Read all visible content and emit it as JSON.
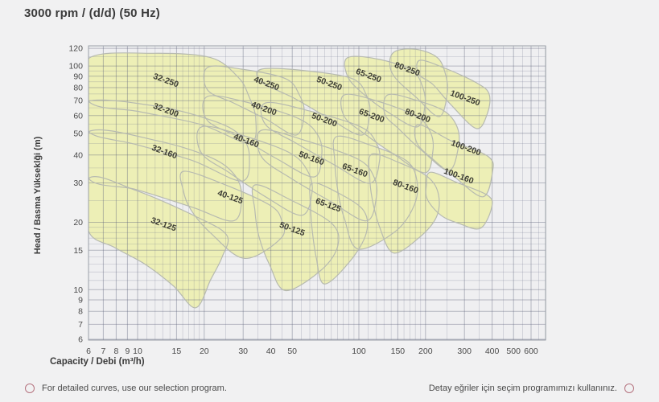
{
  "title": "3000 rpm / (d/d) (50 Hz)",
  "footer": {
    "left_note": "For detailed curves, use our selection program.",
    "right_note": "Detay eğriler için seçim programımızı kullanınız."
  },
  "colors": {
    "page_bg": "#f1f1f2",
    "plot_bg": "#efeff1",
    "plot_border": "#9aa0a8",
    "grid_minor": "rgba(110,115,140,0.28)",
    "grid_major": "rgba(90,95,120,0.40)",
    "region_fill": "#edefb6",
    "region_stroke": "#b7bab0",
    "region_label": "#3c3c34",
    "tick_text": "#4a4a4a",
    "footer_accent": "#b5737f"
  },
  "chart_data": {
    "type": "area",
    "title": "3000 rpm / (d/d) (50 Hz)",
    "xlabel": "Capacity / Debi (m³/h)",
    "ylabel": "Head / Basma Yükseklği (m)",
    "x_axis": {
      "scale": "log",
      "range": [
        6,
        700
      ],
      "tick_labels": [
        6,
        7,
        8,
        9,
        10,
        15,
        20,
        30,
        40,
        50,
        100,
        150,
        200,
        300,
        400,
        500,
        600
      ],
      "gridlines": [
        6,
        7,
        8,
        9,
        10,
        11,
        12,
        13,
        14,
        15,
        16,
        17,
        18,
        19,
        20,
        25,
        30,
        35,
        40,
        45,
        50,
        55,
        60,
        65,
        70,
        75,
        80,
        85,
        90,
        95,
        100,
        110,
        120,
        130,
        140,
        150,
        160,
        170,
        180,
        190,
        200,
        250,
        300,
        350,
        400,
        450,
        500,
        550,
        600,
        650,
        700
      ]
    },
    "y_axis": {
      "scale": "log",
      "range": [
        6,
        124
      ],
      "tick_labels": [
        6,
        7,
        8,
        9,
        10,
        15,
        20,
        30,
        40,
        50,
        60,
        70,
        80,
        90,
        100,
        120
      ],
      "gridlines": [
        6,
        7,
        8,
        9,
        10,
        11,
        12,
        13,
        14,
        15,
        16,
        17,
        18,
        19,
        20,
        25,
        30,
        35,
        40,
        45,
        50,
        55,
        60,
        65,
        70,
        75,
        80,
        85,
        90,
        95,
        100,
        110,
        120
      ]
    },
    "regions": [
      {
        "label": "32-250",
        "label_at": [
          13.3,
          84.1
        ],
        "points": [
          [
            6,
            108
          ],
          [
            11.7,
            114
          ],
          [
            21.4,
            109
          ],
          [
            28.5,
            89
          ],
          [
            31.7,
            74
          ],
          [
            34.2,
            58
          ],
          [
            32,
            45.2
          ],
          [
            19.4,
            54.7
          ],
          [
            10.3,
            62.4
          ],
          [
            6,
            69.5
          ]
        ]
      },
      {
        "label": "32-200",
        "label_at": [
          13.3,
          61.9
        ],
        "points": [
          [
            6,
            69.5
          ],
          [
            12.7,
            65.6
          ],
          [
            22.9,
            56
          ],
          [
            29.5,
            48.3
          ],
          [
            32,
            39.3
          ],
          [
            29.5,
            30.6
          ],
          [
            17.8,
            37.7
          ],
          [
            9.9,
            44.5
          ],
          [
            6,
            50.8
          ]
        ]
      },
      {
        "label": "32-160",
        "label_at": [
          13.1,
          40.3
        ],
        "points": [
          [
            6,
            50.8
          ],
          [
            12.2,
            46.4
          ],
          [
            21.4,
            39
          ],
          [
            27.5,
            32.5
          ],
          [
            29.5,
            26
          ],
          [
            27.1,
            20.3
          ],
          [
            17.8,
            23.3
          ],
          [
            9.9,
            28
          ],
          [
            6,
            31.4
          ]
        ]
      },
      {
        "label": "32-125",
        "label_at": [
          13.0,
          19.1
        ],
        "points": [
          [
            6,
            31.4
          ],
          [
            9.9,
            27.7
          ],
          [
            18.6,
            21.1
          ],
          [
            25.3,
            17.5
          ],
          [
            24.1,
            14
          ],
          [
            21.4,
            11.1
          ],
          [
            18.3,
            8.3
          ],
          [
            14.5,
            10.4
          ],
          [
            10.8,
            13
          ],
          [
            7.9,
            15.4
          ],
          [
            6,
            18.3
          ]
        ]
      },
      {
        "label": "40-250",
        "label_at": [
          37.9,
          81.4
        ],
        "points": [
          [
            20.7,
            98.5
          ],
          [
            29.5,
            96.8
          ],
          [
            46.7,
            87.7
          ],
          [
            53.8,
            74.3
          ],
          [
            56.6,
            61.9
          ],
          [
            52,
            49.1
          ],
          [
            37.9,
            58
          ],
          [
            27.1,
            68.4
          ],
          [
            20.7,
            78.1
          ]
        ]
      },
      {
        "label": "40-200",
        "label_at": [
          36.9,
          62.9
        ],
        "points": [
          [
            20.7,
            73.1
          ],
          [
            32,
            68.4
          ],
          [
            53.8,
            58
          ],
          [
            65.2,
            49.1
          ],
          [
            68,
            40.3
          ],
          [
            62.6,
            31.9
          ],
          [
            42.9,
            38.3
          ],
          [
            29.5,
            47.5
          ],
          [
            20.7,
            57
          ]
        ]
      },
      {
        "label": "40-160",
        "label_at": [
          30.7,
          45.2
        ],
        "points": [
          [
            19.4,
            53.4
          ],
          [
            29.5,
            49.1
          ],
          [
            48.7,
            40.9
          ],
          [
            58.5,
            34.1
          ],
          [
            61.5,
            27.5
          ],
          [
            55.2,
            21.5
          ],
          [
            37.9,
            26
          ],
          [
            26,
            33.3
          ],
          [
            19.4,
            40.9
          ]
        ]
      },
      {
        "label": "40-125",
        "label_at": [
          26.0,
          25.3
        ],
        "points": [
          [
            16.1,
            33.8
          ],
          [
            23.9,
            29.9
          ],
          [
            39.5,
            23.9
          ],
          [
            44.8,
            20.4
          ],
          [
            44.5,
            17
          ],
          [
            30.5,
            13.8
          ],
          [
            21.4,
            17.9
          ],
          [
            17.5,
            22.6
          ],
          [
            16.1,
            27.7
          ]
        ]
      },
      {
        "label": "50-250",
        "label_at": [
          72.8,
          81.4
        ],
        "points": [
          [
            36.3,
            96.8
          ],
          [
            57.5,
            95.2
          ],
          [
            93.5,
            87.7
          ],
          [
            108,
            74.3
          ],
          [
            112,
            61.9
          ],
          [
            103,
            49.1
          ],
          [
            74,
            58
          ],
          [
            50.8,
            71.9
          ],
          [
            36.3,
            84.8
          ]
        ]
      },
      {
        "label": "50-200",
        "label_at": [
          69.2,
          56.0
        ],
        "points": [
          [
            37.9,
            68.4
          ],
          [
            60,
            62.9
          ],
          [
            102,
            53.4
          ],
          [
            120,
            45.2
          ],
          [
            124,
            37.7
          ],
          [
            112,
            29.9
          ],
          [
            77.2,
            36.2
          ],
          [
            52,
            45.2
          ],
          [
            37.9,
            54.7
          ]
        ]
      },
      {
        "label": "50-160",
        "label_at": [
          60.5,
          37.7
        ],
        "points": [
          [
            36.3,
            51.6
          ],
          [
            57.5,
            46.4
          ],
          [
            99.2,
            38.3
          ],
          [
            117,
            31.9
          ],
          [
            120,
            26
          ],
          [
            108,
            20.3
          ],
          [
            74,
            24.9
          ],
          [
            49.5,
            31.4
          ],
          [
            36.3,
            39.3
          ]
        ]
      },
      {
        "label": "50-125",
        "label_at": [
          49.5,
          18.2
        ],
        "points": [
          [
            33.9,
            29.4
          ],
          [
            48.7,
            25.3
          ],
          [
            75.3,
            19.8
          ],
          [
            80.4,
            15.8
          ],
          [
            68,
            12.3
          ],
          [
            46.7,
            9.9
          ],
          [
            39.5,
            12.9
          ],
          [
            35.4,
            17.2
          ],
          [
            33.9,
            22.6
          ]
        ]
      },
      {
        "label": "65-250",
        "label_at": [
          109.6,
          88.4
        ],
        "points": [
          [
            88.9,
            109
          ],
          [
            124,
            107
          ],
          [
            174,
            95.2
          ],
          [
            194,
            80.7
          ],
          [
            199,
            67.3
          ],
          [
            183,
            53.4
          ],
          [
            133,
            62.9
          ],
          [
            103,
            76.1
          ],
          [
            88.9,
            89.9
          ]
        ]
      },
      {
        "label": "65-200",
        "label_at": [
          113.3,
          58.5
        ],
        "points": [
          [
            86,
            74.3
          ],
          [
            122,
            69.5
          ],
          [
            183,
            59.4
          ],
          [
            211,
            50.3
          ],
          [
            216,
            41.6
          ],
          [
            199,
            33.3
          ],
          [
            144,
            40.3
          ],
          [
            108,
            49.1
          ],
          [
            86,
            59.4
          ]
        ]
      },
      {
        "label": "65-160",
        "label_at": [
          95.1,
          33.3
        ],
        "points": [
          [
            79.1,
            48.3
          ],
          [
            111,
            44.5
          ],
          [
            164,
            37.7
          ],
          [
            183,
            30.6
          ],
          [
            178,
            23.9
          ],
          [
            147,
            18.3
          ],
          [
            99.2,
            15.2
          ],
          [
            86,
            20.8
          ],
          [
            80.4,
            27.5
          ],
          [
            77.8,
            37.7
          ]
        ]
      },
      {
        "label": "65-125",
        "label_at": [
          72.1,
          23.3
        ],
        "points": [
          [
            61.5,
            29.9
          ],
          [
            80.4,
            27.1
          ],
          [
            105,
            22.6
          ],
          [
            108,
            17.9
          ],
          [
            91.2,
            13.4
          ],
          [
            69.8,
            10.6
          ],
          [
            64.1,
            14
          ],
          [
            61.5,
            18.6
          ],
          [
            60.5,
            23.9
          ]
        ]
      },
      {
        "label": "80-250",
        "label_at": [
          163.9,
          94.4
        ],
        "points": [
          [
            142,
            114
          ],
          [
            178,
            119
          ],
          [
            224,
            110
          ],
          [
            245,
            93.7
          ],
          [
            251,
            76.1
          ],
          [
            231,
            59.4
          ],
          [
            183,
            71.9
          ],
          [
            142,
            92.1
          ]
        ]
      },
      {
        "label": "80-200",
        "label_at": [
          182.7,
          58.5
        ],
        "points": [
          [
            135,
            74.3
          ],
          [
            178,
            70.7
          ],
          [
            243,
            62.9
          ],
          [
            278,
            53.4
          ],
          [
            282,
            43.7
          ],
          [
            255,
            34.1
          ],
          [
            194,
            41.6
          ],
          [
            151,
            52.5
          ],
          [
            131,
            60.9
          ]
        ]
      },
      {
        "label": "80-160",
        "label_at": [
          161.2,
          28.2
        ],
        "points": [
          [
            114,
            40.3
          ],
          [
            151,
            37.1
          ],
          [
            205,
            31.9
          ],
          [
            229,
            26.6
          ],
          [
            224,
            21.1
          ],
          [
            186,
            17
          ],
          [
            143,
            14.6
          ],
          [
            124,
            19.1
          ],
          [
            115,
            25.3
          ],
          [
            112,
            31.9
          ]
        ]
      },
      {
        "label": "100-250",
        "label_at": [
          299.5,
          70.1
        ],
        "points": [
          [
            189,
            106
          ],
          [
            251,
            96.8
          ],
          [
            345,
            83.4
          ],
          [
            388,
            74.9
          ],
          [
            382,
            61.9
          ],
          [
            340,
            52.5
          ],
          [
            260,
            67.3
          ],
          [
            216,
            82.7
          ],
          [
            186,
            92.1
          ]
        ]
      },
      {
        "label": "100-200",
        "label_at": [
          302.0,
          42.0
        ],
        "points": [
          [
            186,
            54.7
          ],
          [
            260,
            46.4
          ],
          [
            385,
            39.3
          ],
          [
            401,
            33.3
          ],
          [
            363,
            26
          ],
          [
            271,
            31.9
          ],
          [
            220,
            37.7
          ],
          [
            183,
            45.2
          ]
        ]
      },
      {
        "label": "100-160",
        "label_at": [
          280.1,
          31.4
        ],
        "points": [
          [
            211,
            33.5
          ],
          [
            278,
            30.1
          ],
          [
            382,
            26.4
          ],
          [
            398,
            23.3
          ],
          [
            354,
            18.8
          ],
          [
            282,
            19.8
          ],
          [
            235,
            21.5
          ],
          [
            204,
            25.3
          ],
          [
            202,
            29.4
          ]
        ]
      }
    ]
  }
}
